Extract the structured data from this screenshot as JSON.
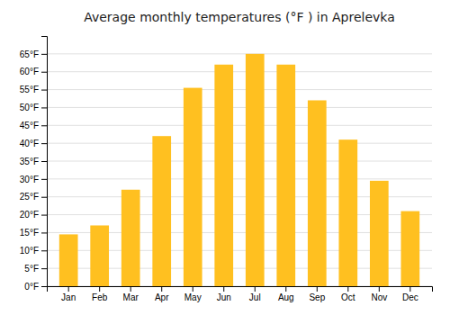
{
  "chart_data": {
    "type": "bar",
    "title": "Average monthly temperatures (°F ) in Aprelevka",
    "categories": [
      "Jan",
      "Feb",
      "Mar",
      "Apr",
      "May",
      "Jun",
      "Jul",
      "Aug",
      "Sep",
      "Oct",
      "Nov",
      "Dec"
    ],
    "values": [
      14.5,
      17.0,
      27.0,
      42.0,
      55.5,
      62.0,
      65.0,
      62.0,
      52.0,
      41.0,
      29.5,
      21.0
    ],
    "color": "#FFC020",
    "ylim": [
      0,
      70
    ],
    "yticks": [
      {
        "value": 0,
        "label": "0°F"
      },
      {
        "value": 5,
        "label": "5°F"
      },
      {
        "value": 10,
        "label": "10°F"
      },
      {
        "value": 15,
        "label": "15°F"
      },
      {
        "value": 20,
        "label": "20°F"
      },
      {
        "value": 25,
        "label": "25°F"
      },
      {
        "value": 30,
        "label": "30°F"
      },
      {
        "value": 35,
        "label": "35°F"
      },
      {
        "value": 40,
        "label": "40°F"
      },
      {
        "value": 45,
        "label": "45°F"
      },
      {
        "value": 50,
        "label": "50°F"
      },
      {
        "value": 55,
        "label": "55°F"
      },
      {
        "value": 60,
        "label": "60°F"
      },
      {
        "value": 65,
        "label": "65°F"
      }
    ],
    "grid": true
  }
}
